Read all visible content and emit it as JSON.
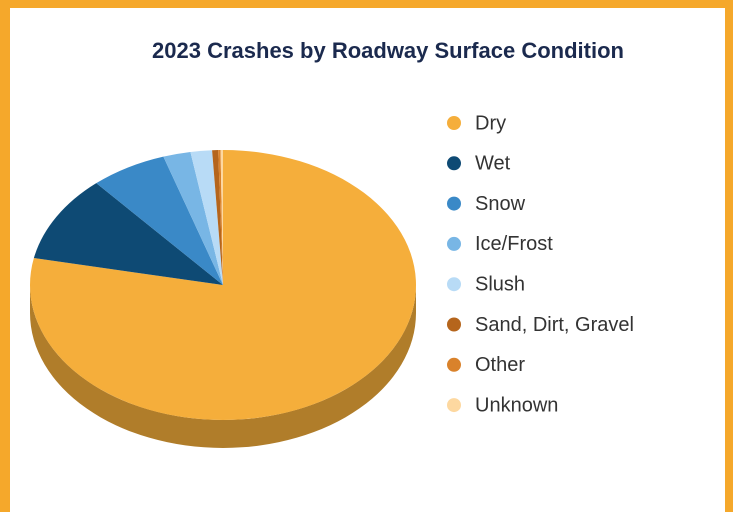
{
  "chart_data": {
    "type": "pie",
    "title": "2023 Crashes by Roadway Surface Condition",
    "categories": [
      "Dry",
      "Wet",
      "Snow",
      "Ice/Frost",
      "Slush",
      "Sand, Dirt, Gravel",
      "Other",
      "Unknown"
    ],
    "values": [
      78.2,
      10.4,
      6.4,
      2.3,
      1.8,
      0.5,
      0.2,
      0.2
    ],
    "colors": [
      "#f5ae3b",
      "#0e4a74",
      "#3a89c7",
      "#78b6e5",
      "#b8dbf6",
      "#b5651c",
      "#d9822b",
      "#fdd8a0"
    ],
    "legend": "right"
  }
}
